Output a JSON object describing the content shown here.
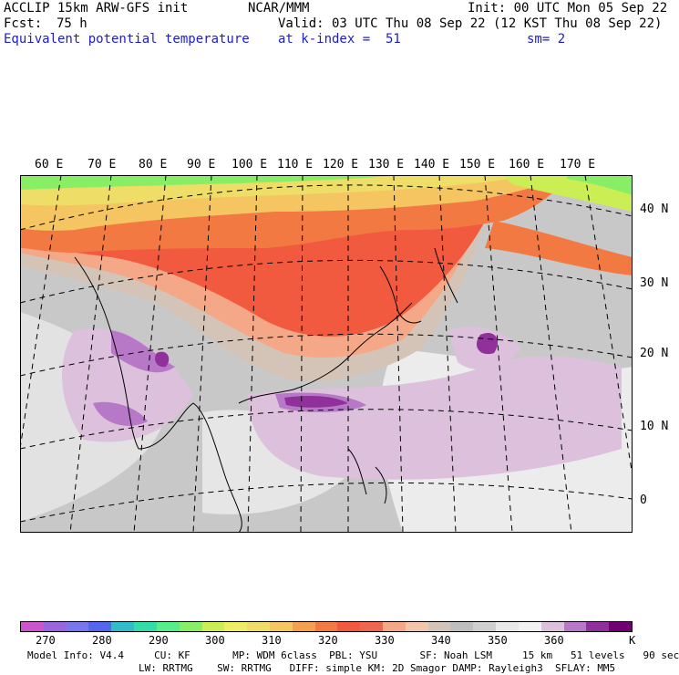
{
  "header": {
    "model_line": "ACCLIP 15km ARW-GFS init",
    "forecast_label": "Fcst:",
    "forecast_hours": "75 h",
    "field_name": "Equivalent potential temperature",
    "center": "NCAR/MMM",
    "valid": "Valid: 03 UTC Thu 08 Sep 22 (12 KST Thu 08 Sep 22)",
    "init": "Init: 00 UTC Mon 05 Sep 22",
    "level": "at k-index =  51",
    "smoothing": "sm= 2"
  },
  "map": {
    "longitude_labels": [
      "60 E",
      "70 E",
      "80 E",
      "90 E",
      "100 E",
      "110 E",
      "120 E",
      "130 E",
      "140 E",
      "150 E",
      "160 E",
      "170 E"
    ],
    "latitude_labels": [
      "40 N",
      "30 N",
      "20 N",
      "10 N",
      "0"
    ]
  },
  "colorbar": {
    "unit": "K",
    "colors": [
      "#cc55cc",
      "#9966dd",
      "#7777ee",
      "#5566ee",
      "#33bbcc",
      "#33ddaa",
      "#55ee88",
      "#88ee66",
      "#ccee55",
      "#eeee66",
      "#eedd66",
      "#f4c560",
      "#f5a050",
      "#f27a42",
      "#f25a40",
      "#ee6650",
      "#f4a888",
      "#f2c6aa",
      "#d4c4b8",
      "#bfbdbd",
      "#cfcfcf",
      "#e8e8e8",
      "#f2f2f2",
      "#dcc0dc",
      "#b878c8",
      "#90309a",
      "#700070"
    ],
    "tick_labels": [
      "270",
      "280",
      "290",
      "300",
      "310",
      "320",
      "330",
      "340",
      "350",
      "360"
    ]
  },
  "footer": {
    "line1": "Model Info: V4.4     CU: KF       MP: WDM 6class  PBL: YSU       SF: Noah LSM     15 km   51 levels   90 sec",
    "line2": "LW: RRTMG    SW: RRTMG   DIFF: simple KM: 2D Smagor DAMP: Rayleigh3  SFLAY: MM5"
  }
}
